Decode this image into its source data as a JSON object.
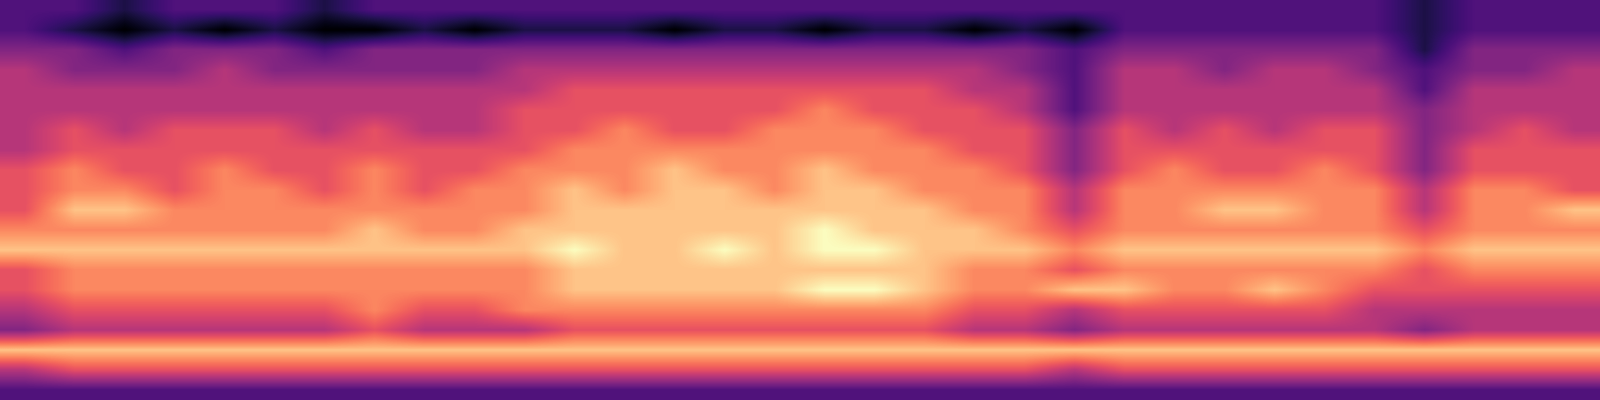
{
  "chart_data": {
    "type": "heatmap",
    "color": "magma",
    "tick_labels": false,
    "cells": [
      [
        2,
        2,
        1,
        2,
        2,
        2,
        1,
        2,
        2,
        2,
        2,
        2,
        2,
        2,
        2,
        2,
        2,
        2,
        2,
        2,
        2,
        2,
        2,
        2,
        2,
        2,
        2,
        2,
        1,
        2,
        2,
        2
      ],
      [
        2,
        1,
        0,
        1,
        0,
        1,
        0,
        0,
        1,
        0,
        1,
        1,
        1,
        0,
        1,
        1,
        0,
        1,
        1,
        0,
        1,
        0,
        2,
        2,
        2,
        2,
        2,
        2,
        1,
        2,
        2,
        2
      ],
      [
        3,
        3,
        2,
        3,
        3,
        3,
        2,
        3,
        3,
        3,
        3,
        3,
        3,
        3,
        3,
        3,
        3,
        3,
        3,
        3,
        3,
        2,
        3,
        3,
        3,
        3,
        3,
        3,
        1,
        3,
        3,
        3
      ],
      [
        4,
        3,
        3,
        3,
        4,
        3,
        3,
        3,
        3,
        3,
        4,
        4,
        4,
        4,
        4,
        4,
        4,
        4,
        4,
        4,
        3,
        2,
        4,
        4,
        3,
        4,
        4,
        3,
        2,
        3,
        3,
        4
      ],
      [
        4,
        4,
        4,
        4,
        4,
        4,
        4,
        4,
        4,
        4,
        4,
        5,
        5,
        5,
        5,
        5,
        5,
        5,
        5,
        4,
        4,
        2,
        4,
        4,
        4,
        4,
        4,
        4,
        2,
        4,
        4,
        4
      ],
      [
        4,
        4,
        4,
        4,
        4,
        4,
        4,
        4,
        4,
        4,
        5,
        5,
        5,
        5,
        5,
        5,
        6,
        5,
        5,
        5,
        4,
        2,
        4,
        4,
        4,
        4,
        4,
        4,
        3,
        4,
        4,
        4
      ],
      [
        4,
        5,
        4,
        5,
        5,
        5,
        4,
        5,
        4,
        4,
        5,
        5,
        6,
        5,
        5,
        6,
        6,
        6,
        5,
        5,
        5,
        3,
        5,
        4,
        5,
        4,
        5,
        5,
        3,
        4,
        5,
        4
      ],
      [
        4,
        5,
        5,
        5,
        5,
        5,
        5,
        5,
        5,
        5,
        5,
        6,
        6,
        6,
        6,
        6,
        6,
        6,
        6,
        5,
        5,
        3,
        5,
        5,
        5,
        5,
        5,
        5,
        3,
        5,
        5,
        5
      ],
      [
        5,
        6,
        5,
        5,
        6,
        5,
        5,
        6,
        5,
        5,
        6,
        6,
        6,
        7,
        6,
        6,
        7,
        6,
        6,
        6,
        5,
        3,
        5,
        6,
        5,
        5,
        6,
        5,
        3,
        5,
        5,
        5
      ],
      [
        5,
        6,
        6,
        5,
        6,
        6,
        5,
        6,
        5,
        6,
        6,
        7,
        6,
        7,
        7,
        6,
        7,
        7,
        6,
        6,
        6,
        4,
        6,
        6,
        6,
        6,
        6,
        6,
        4,
        6,
        6,
        5
      ],
      [
        5,
        7,
        7,
        6,
        6,
        6,
        6,
        6,
        6,
        6,
        6,
        7,
        7,
        7,
        7,
        7,
        7,
        7,
        7,
        6,
        6,
        4,
        6,
        6,
        7,
        7,
        6,
        6,
        4,
        6,
        6,
        7
      ],
      [
        6,
        6,
        6,
        6,
        6,
        6,
        6,
        7,
        6,
        6,
        7,
        7,
        7,
        7,
        7,
        7,
        8,
        7,
        7,
        7,
        6,
        5,
        6,
        6,
        6,
        6,
        6,
        6,
        5,
        6,
        6,
        6
      ],
      [
        7,
        7,
        7,
        7,
        7,
        7,
        7,
        7,
        7,
        7,
        7,
        8,
        7,
        7,
        8,
        7,
        8,
        8,
        7,
        7,
        7,
        6,
        7,
        7,
        7,
        7,
        7,
        7,
        6,
        7,
        7,
        7
      ],
      [
        5,
        6,
        6,
        6,
        6,
        6,
        6,
        6,
        6,
        6,
        6,
        7,
        7,
        7,
        7,
        7,
        7,
        7,
        7,
        6,
        6,
        5,
        6,
        6,
        6,
        6,
        6,
        6,
        5,
        6,
        6,
        6
      ],
      [
        5,
        6,
        6,
        6,
        6,
        6,
        6,
        6,
        6,
        6,
        6,
        7,
        7,
        7,
        7,
        7,
        8,
        8,
        7,
        6,
        6,
        7,
        7,
        6,
        6,
        7,
        6,
        5,
        5,
        5,
        5,
        5
      ],
      [
        4,
        5,
        5,
        5,
        5,
        5,
        5,
        6,
        5,
        5,
        6,
        6,
        6,
        6,
        6,
        6,
        6,
        6,
        6,
        5,
        5,
        4,
        5,
        5,
        5,
        5,
        5,
        4,
        4,
        4,
        4,
        4
      ],
      [
        3,
        4,
        4,
        4,
        4,
        4,
        4,
        5,
        4,
        4,
        4,
        5,
        5,
        5,
        5,
        5,
        5,
        5,
        5,
        4,
        4,
        3,
        4,
        4,
        4,
        4,
        4,
        4,
        3,
        4,
        4,
        4
      ],
      [
        7,
        7,
        7,
        7,
        7,
        7,
        7,
        7,
        7,
        7,
        7,
        7,
        7,
        7,
        7,
        7,
        7,
        7,
        7,
        7,
        7,
        7,
        7,
        7,
        7,
        7,
        7,
        7,
        7,
        7,
        7,
        7
      ],
      [
        4,
        5,
        5,
        5,
        5,
        5,
        5,
        5,
        5,
        5,
        5,
        5,
        5,
        5,
        5,
        5,
        5,
        5,
        5,
        5,
        5,
        4,
        5,
        5,
        5,
        5,
        5,
        5,
        5,
        5,
        5,
        5
      ],
      [
        2,
        2,
        2,
        2,
        2,
        2,
        2,
        2,
        2,
        2,
        2,
        2,
        2,
        2,
        2,
        2,
        2,
        2,
        2,
        2,
        2,
        2,
        2,
        2,
        2,
        2,
        2,
        2,
        2,
        2,
        2,
        2
      ]
    ]
  }
}
